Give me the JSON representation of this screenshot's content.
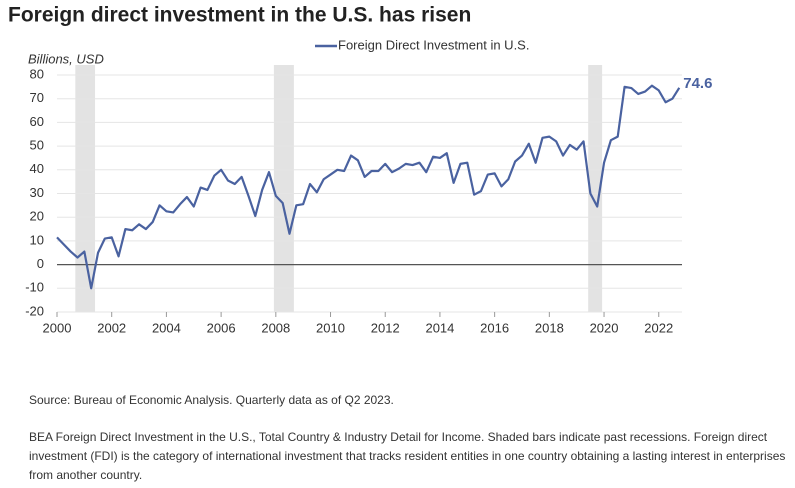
{
  "chart_data": {
    "type": "line",
    "title": "Foreign direct investment in the U.S. has risen",
    "ylabel": "Billions, USD",
    "source": "Source: Bureau of Economic Analysis. Quarterly data as of Q2 2023.",
    "note": "BEA Foreign Direct Investment in the U.S., Total Country & Industry Detail for Income. Shaded bars indicate past recessions. Foreign direct investment (FDI) is the category of international investment that tracks resident entities in one country obtaining a lasting interest in enterprises from another country.",
    "xlim": [
      2000,
      2022.85
    ],
    "xticks": [
      2000,
      2002,
      2004,
      2006,
      2008,
      2010,
      2012,
      2014,
      2016,
      2018,
      2020,
      2022
    ],
    "ylim": [
      -20,
      80
    ],
    "yticks": [
      -20,
      -10,
      0,
      10,
      20,
      30,
      40,
      50,
      60,
      70,
      80
    ],
    "grid": true,
    "recessions": [
      [
        2000.67,
        2001.39
      ],
      [
        2007.93,
        2008.66
      ],
      [
        2019.42,
        2019.93
      ]
    ],
    "recession_color": "#e3e3e3",
    "x": [
      2000,
      2000.25,
      2000.5,
      2000.75,
      2001,
      2001.25,
      2001.5,
      2001.75,
      2002,
      2002.25,
      2002.5,
      2002.75,
      2003,
      2003.25,
      2003.5,
      2003.75,
      2004,
      2004.25,
      2004.5,
      2004.75,
      2005,
      2005.25,
      2005.5,
      2005.75,
      2006,
      2006.25,
      2006.5,
      2006.75,
      2007,
      2007.25,
      2007.5,
      2007.75,
      2008,
      2008.25,
      2008.5,
      2008.75,
      2009,
      2009.25,
      2009.5,
      2009.75,
      2010,
      2010.25,
      2010.5,
      2010.75,
      2011,
      2011.25,
      2011.5,
      2011.75,
      2012,
      2012.25,
      2012.5,
      2012.75,
      2013,
      2013.25,
      2013.5,
      2013.75,
      2014,
      2014.25,
      2014.5,
      2014.75,
      2015,
      2015.25,
      2015.5,
      2015.75,
      2016,
      2016.25,
      2016.5,
      2016.75,
      2017,
      2017.25,
      2017.5,
      2017.75,
      2018,
      2018.25,
      2018.5,
      2018.75,
      2019,
      2019.25,
      2019.5,
      2019.75,
      2020,
      2020.25,
      2020.5,
      2020.75,
      2021,
      2021.25,
      2021.5,
      2021.75,
      2022,
      2022.25,
      2022.5,
      2022.75
    ],
    "series": [
      {
        "name": "Foreign Direct Investment in U.S.",
        "color": "#4a62a0",
        "values": [
          11.5,
          8.5,
          5.5,
          3,
          5.5,
          -10,
          5,
          11,
          11.5,
          3.5,
          15,
          14.5,
          17,
          15,
          18,
          25,
          22.5,
          22,
          25.5,
          28.5,
          24.5,
          32.5,
          31.5,
          37.5,
          40,
          35.5,
          34,
          37,
          29,
          20.5,
          31.5,
          39,
          29,
          26,
          13,
          25,
          25.5,
          34,
          30.5,
          36,
          38,
          40,
          39.5,
          46,
          44,
          37,
          39.5,
          39.5,
          42.5,
          39,
          40.5,
          42.5,
          42,
          43,
          39,
          45.5,
          45,
          47,
          34.5,
          42.5,
          43,
          29.5,
          31,
          38,
          38.5,
          33,
          36,
          43.5,
          46,
          51,
          43,
          53.5,
          54,
          52,
          46,
          50.5,
          48.5,
          52,
          30,
          24.5,
          43,
          52.5,
          54,
          75,
          74.5,
          72,
          73,
          75.5,
          73.5,
          68.5,
          70,
          74.6
        ]
      }
    ]
  }
}
